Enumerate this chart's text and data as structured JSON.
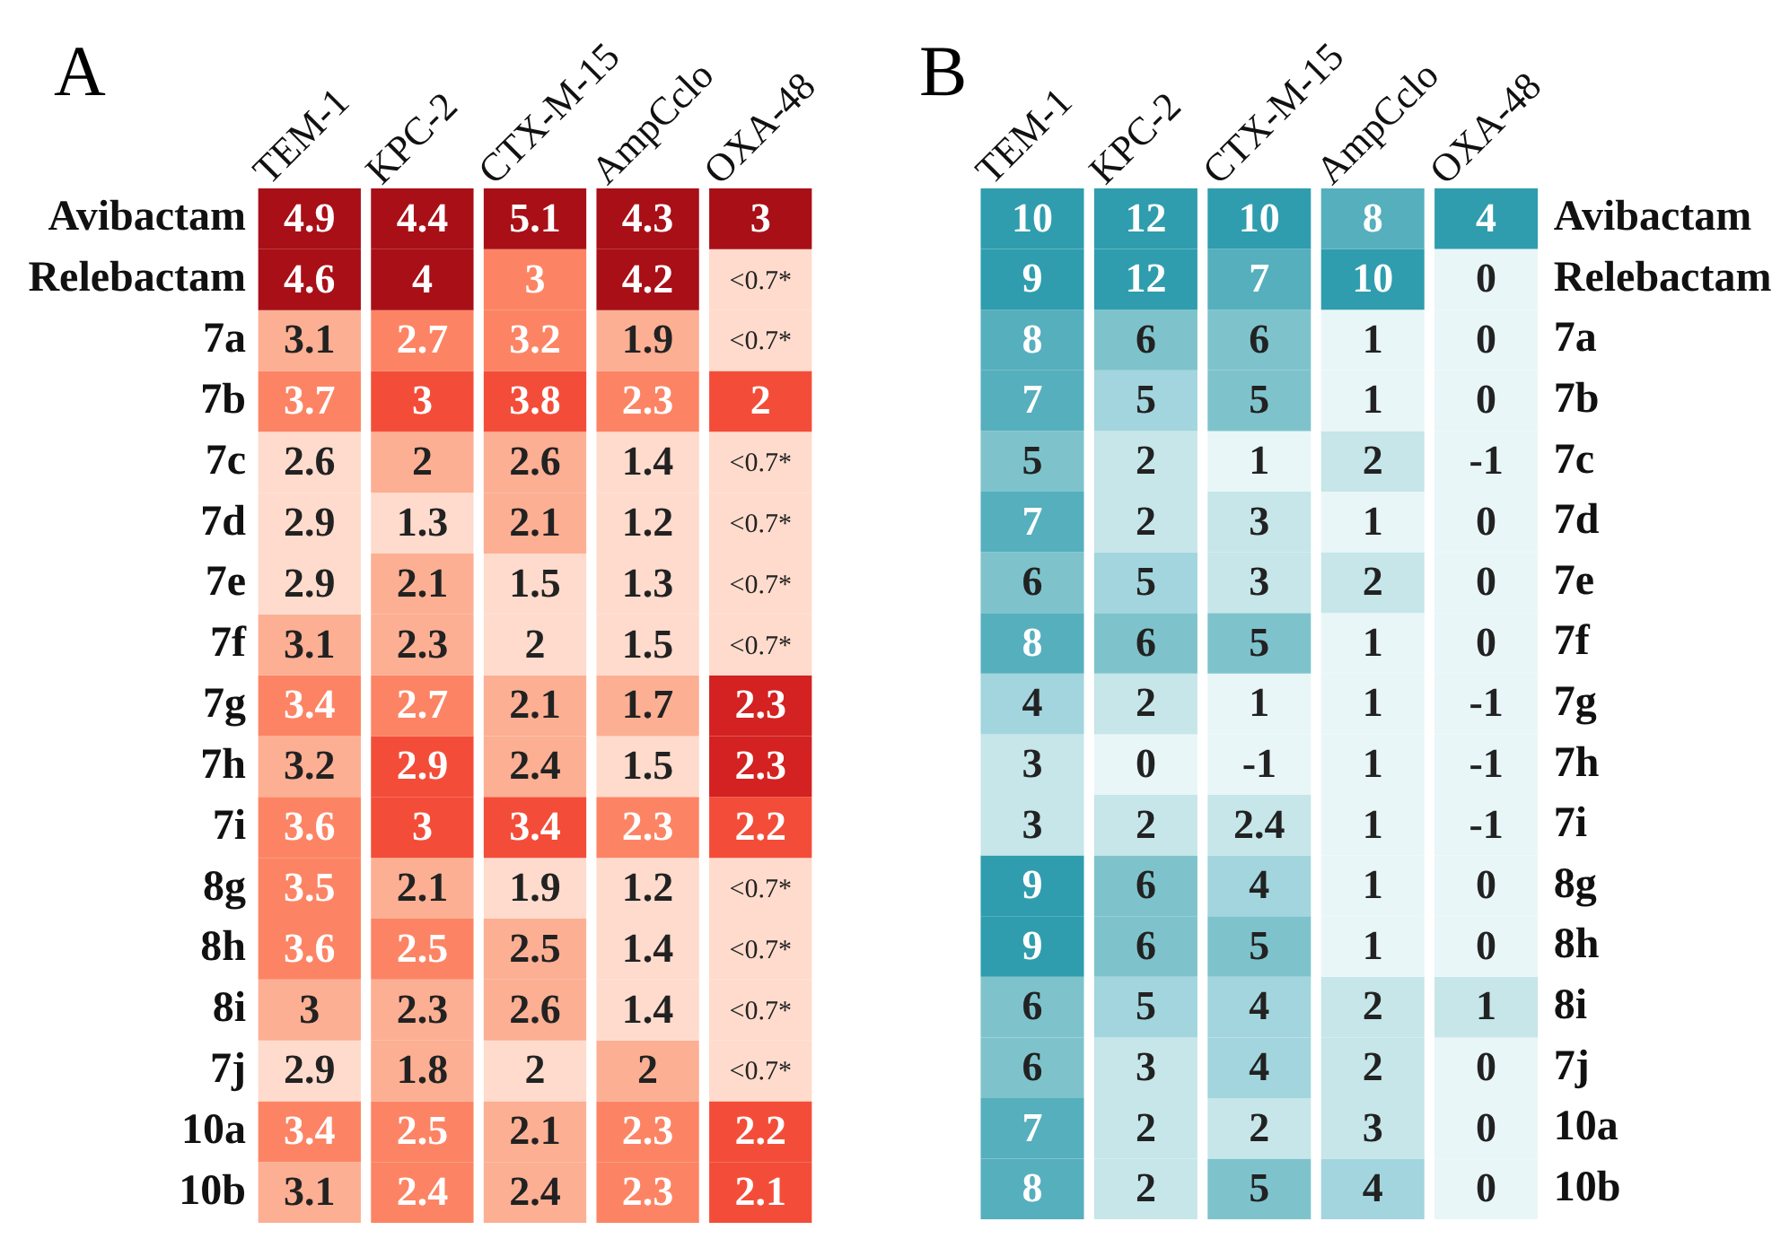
{
  "chart_data": [
    {
      "type": "heatmap",
      "title": "A",
      "categories": [
        "TEM-1",
        "KPC-2",
        "CTX-M-15",
        "AmpCclo",
        "OXA-48"
      ],
      "y_categories": [
        "Avibactam",
        "Relebactam",
        "7a",
        "7b",
        "7c",
        "7d",
        "7e",
        "7f",
        "7g",
        "7h",
        "7i",
        "8g",
        "8h",
        "8i",
        "7j",
        "10a",
        "10b"
      ],
      "cells": [
        [
          4.9,
          4.4,
          5.1,
          4.3,
          3
        ],
        [
          4.6,
          4,
          3,
          4.2,
          null
        ],
        [
          3.1,
          2.7,
          3.2,
          1.9,
          null
        ],
        [
          3.7,
          3,
          3.8,
          2.3,
          2
        ],
        [
          2.6,
          2,
          2.6,
          1.4,
          null
        ],
        [
          2.9,
          1.3,
          2.1,
          1.2,
          null
        ],
        [
          2.9,
          2.1,
          1.5,
          1.3,
          null
        ],
        [
          3.1,
          2.3,
          2,
          1.5,
          null
        ],
        [
          3.4,
          2.7,
          2.1,
          1.7,
          2.3
        ],
        [
          3.2,
          2.9,
          2.4,
          1.5,
          2.3
        ],
        [
          3.6,
          3,
          3.4,
          2.3,
          2.2
        ],
        [
          3.5,
          2.1,
          1.9,
          1.2,
          null
        ],
        [
          3.6,
          2.5,
          2.5,
          1.4,
          null
        ],
        [
          3,
          2.3,
          2.6,
          1.4,
          null
        ],
        [
          2.9,
          1.8,
          2,
          2,
          null
        ],
        [
          3.4,
          2.5,
          2.1,
          2.3,
          2.2
        ],
        [
          3.1,
          2.4,
          2.4,
          2.3,
          2.1
        ]
      ],
      "cell_labels": [
        [
          "4.9",
          "4.4",
          "5.1",
          "4.3",
          "3"
        ],
        [
          "4.6",
          "4",
          "3",
          "4.2",
          "<0.7*"
        ],
        [
          "3.1",
          "2.7",
          "3.2",
          "1.9",
          "<0.7*"
        ],
        [
          "3.7",
          "3",
          "3.8",
          "2.3",
          "2"
        ],
        [
          "2.6",
          "2",
          "2.6",
          "1.4",
          "<0.7*"
        ],
        [
          "2.9",
          "1.3",
          "2.1",
          "1.2",
          "<0.7*"
        ],
        [
          "2.9",
          "2.1",
          "1.5",
          "1.3",
          "<0.7*"
        ],
        [
          "3.1",
          "2.3",
          "2",
          "1.5",
          "<0.7*"
        ],
        [
          "3.4",
          "2.7",
          "2.1",
          "1.7",
          "2.3"
        ],
        [
          "3.2",
          "2.9",
          "2.4",
          "1.5",
          "2.3"
        ],
        [
          "3.6",
          "3",
          "3.4",
          "2.3",
          "2.2"
        ],
        [
          "3.5",
          "2.1",
          "1.9",
          "1.2",
          "<0.7*"
        ],
        [
          "3.6",
          "2.5",
          "2.5",
          "1.4",
          "<0.7*"
        ],
        [
          "3",
          "2.3",
          "2.6",
          "1.4",
          "<0.7*"
        ],
        [
          "2.9",
          "1.8",
          "2",
          "2",
          "<0.7*"
        ],
        [
          "3.4",
          "2.5",
          "2.1",
          "2.3",
          "2.2"
        ],
        [
          "3.1",
          "2.4",
          "2.4",
          "2.3",
          "2.1"
        ]
      ],
      "colors": [
        [
          "#a90f17",
          "#a90f17",
          "#a90f17",
          "#a90f17",
          "#a90f17"
        ],
        [
          "#a90f17",
          "#a90f17",
          "#fc8464",
          "#a90f17",
          "#fedbcc"
        ],
        [
          "#fcaf93",
          "#fc8464",
          "#fc8464",
          "#fcaf93",
          "#fedbcc"
        ],
        [
          "#fc8464",
          "#f34d39",
          "#f34d39",
          "#fc8464",
          "#f34d39"
        ],
        [
          "#fedbcc",
          "#fcaf93",
          "#fcaf93",
          "#fedbcc",
          "#fedbcc"
        ],
        [
          "#fedbcc",
          "#fedbcc",
          "#fcaf93",
          "#fedbcc",
          "#fedbcc"
        ],
        [
          "#fedbcc",
          "#fcaf93",
          "#fedbcc",
          "#fedbcc",
          "#fedbcc"
        ],
        [
          "#fcaf93",
          "#fcaf93",
          "#fedbcc",
          "#fedbcc",
          "#fedbcc"
        ],
        [
          "#fc8464",
          "#fc8464",
          "#fcaf93",
          "#fcaf93",
          "#d42121"
        ],
        [
          "#fcaf93",
          "#f34d39",
          "#fcaf93",
          "#fedbcc",
          "#d42121"
        ],
        [
          "#fc8464",
          "#f34d39",
          "#f34d39",
          "#fc8464",
          "#f34d39"
        ],
        [
          "#fc8464",
          "#fcaf93",
          "#fedbcc",
          "#fedbcc",
          "#fedbcc"
        ],
        [
          "#fc8464",
          "#fc8464",
          "#fcaf93",
          "#fedbcc",
          "#fedbcc"
        ],
        [
          "#fcaf93",
          "#fcaf93",
          "#fcaf93",
          "#fedbcc",
          "#fedbcc"
        ],
        [
          "#fedbcc",
          "#fcaf93",
          "#fedbcc",
          "#fcaf93",
          "#fedbcc"
        ],
        [
          "#fc8464",
          "#fc8464",
          "#fcaf93",
          "#fc8464",
          "#f34d39"
        ],
        [
          "#fcaf93",
          "#fc8464",
          "#fcaf93",
          "#fc8464",
          "#f34d39"
        ]
      ],
      "data_labels": true
    },
    {
      "type": "heatmap",
      "title": "B",
      "categories": [
        "TEM-1",
        "KPC-2",
        "CTX-M-15",
        "AmpCclo",
        "OXA-48"
      ],
      "y_categories": [
        "Avibactam",
        "Relebactam",
        "7a",
        "7b",
        "7c",
        "7d",
        "7e",
        "7f",
        "7g",
        "7h",
        "7i",
        "8g",
        "8h",
        "8i",
        "7j",
        "10a",
        "10b"
      ],
      "cells": [
        [
          10,
          12,
          10,
          8,
          4
        ],
        [
          9,
          12,
          7,
          10,
          0
        ],
        [
          8,
          6,
          6,
          1,
          0
        ],
        [
          7,
          5,
          5,
          1,
          0
        ],
        [
          5,
          2,
          1,
          2,
          -1
        ],
        [
          7,
          2,
          3,
          1,
          0
        ],
        [
          6,
          5,
          3,
          2,
          0
        ],
        [
          8,
          6,
          5,
          1,
          0
        ],
        [
          4,
          2,
          1,
          1,
          -1
        ],
        [
          3,
          0,
          -1,
          1,
          -1
        ],
        [
          3,
          2,
          2.4,
          1,
          -1
        ],
        [
          9,
          6,
          4,
          1,
          0
        ],
        [
          9,
          6,
          5,
          1,
          0
        ],
        [
          6,
          5,
          4,
          2,
          1
        ],
        [
          6,
          3,
          4,
          2,
          0
        ],
        [
          7,
          2,
          2,
          3,
          0
        ],
        [
          8,
          2,
          5,
          4,
          0
        ]
      ],
      "colors": [
        [
          "#2f9dad",
          "#2f9dad",
          "#2f9dad",
          "#56afbd",
          "#2f9dad"
        ],
        [
          "#2f9dad",
          "#2f9dad",
          "#56afbd",
          "#2f9dad",
          "#e9f6f7"
        ],
        [
          "#56afbd",
          "#7ec3cc",
          "#7ec3cc",
          "#e9f6f7",
          "#e9f6f7"
        ],
        [
          "#56afbd",
          "#a2d5dd",
          "#7ec3cc",
          "#e9f6f7",
          "#e9f6f7"
        ],
        [
          "#7ec3cc",
          "#c6e6e9",
          "#e9f6f7",
          "#c6e6e9",
          "#e9f6f7"
        ],
        [
          "#56afbd",
          "#c6e6e9",
          "#c6e6e9",
          "#e9f6f7",
          "#e9f6f7"
        ],
        [
          "#7ec3cc",
          "#a2d5dd",
          "#c6e6e9",
          "#c6e6e9",
          "#e9f6f7"
        ],
        [
          "#56afbd",
          "#7ec3cc",
          "#7ec3cc",
          "#e9f6f7",
          "#e9f6f7"
        ],
        [
          "#a2d5dd",
          "#c6e6e9",
          "#e9f6f7",
          "#e9f6f7",
          "#e9f6f7"
        ],
        [
          "#c6e6e9",
          "#e9f6f7",
          "#e9f6f7",
          "#e9f6f7",
          "#e9f6f7"
        ],
        [
          "#c6e6e9",
          "#c6e6e9",
          "#c6e6e9",
          "#e9f6f7",
          "#e9f6f7"
        ],
        [
          "#2f9dad",
          "#7ec3cc",
          "#a2d5dd",
          "#e9f6f7",
          "#e9f6f7"
        ],
        [
          "#2f9dad",
          "#7ec3cc",
          "#7ec3cc",
          "#e9f6f7",
          "#e9f6f7"
        ],
        [
          "#7ec3cc",
          "#a2d5dd",
          "#a2d5dd",
          "#c6e6e9",
          "#c6e6e9"
        ],
        [
          "#7ec3cc",
          "#c6e6e9",
          "#a2d5dd",
          "#c6e6e9",
          "#e9f6f7"
        ],
        [
          "#56afbd",
          "#c6e6e9",
          "#c6e6e9",
          "#c6e6e9",
          "#e9f6f7"
        ],
        [
          "#56afbd",
          "#c6e6e9",
          "#7ec3cc",
          "#a2d5dd",
          "#e9f6f7"
        ]
      ],
      "data_labels": true
    }
  ]
}
